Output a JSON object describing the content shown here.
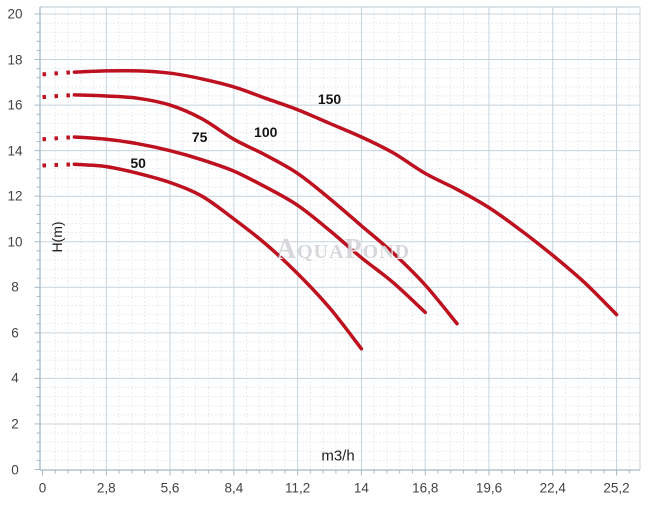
{
  "chart_data": {
    "type": "line",
    "title": "",
    "xlabel": "m3/h",
    "ylabel": "H(m)",
    "watermark": "AquaPond",
    "xlim": [
      0,
      25.2
    ],
    "ylim": [
      0,
      20
    ],
    "grid": {
      "major": true,
      "minor": true,
      "minor_step_x": 0.56,
      "minor_step_y": 0.4
    },
    "legend_position": "none",
    "x_ticks": [
      {
        "label": "0",
        "value": 0
      },
      {
        "label": "2,8",
        "value": 2.8
      },
      {
        "label": "5,6",
        "value": 5.6
      },
      {
        "label": "8,4",
        "value": 8.4
      },
      {
        "label": "11,2",
        "value": 11.2
      },
      {
        "label": "14",
        "value": 14
      },
      {
        "label": "16,8",
        "value": 16.8
      },
      {
        "label": "19,6",
        "value": 19.6
      },
      {
        "label": "22,4",
        "value": 22.4
      },
      {
        "label": "25,2",
        "value": 25.2
      }
    ],
    "y_ticks": [
      {
        "label": "0",
        "value": 0
      },
      {
        "label": "2",
        "value": 2
      },
      {
        "label": "4",
        "value": 4
      },
      {
        "label": "6",
        "value": 6
      },
      {
        "label": "8",
        "value": 8
      },
      {
        "label": "10",
        "value": 10
      },
      {
        "label": "12",
        "value": 12
      },
      {
        "label": "14",
        "value": 14
      },
      {
        "label": "16",
        "value": 16
      },
      {
        "label": "18",
        "value": 18
      },
      {
        "label": "20",
        "value": 20
      }
    ],
    "colors": {
      "curve": "#bd1120",
      "grid_major": "#c7d3db",
      "grid_minor": "#e0e8ed",
      "axis": "#a6bac8",
      "tick_text": "#434343",
      "curve_label_text": "#151515",
      "watermark": "#8a8a96"
    },
    "series": [
      {
        "name": "50",
        "dotted_until": 1.4,
        "label_anchor": [
          4.2,
          13.45
        ],
        "points": [
          [
            0,
            13.35
          ],
          [
            1.4,
            13.4
          ],
          [
            2.8,
            13.3
          ],
          [
            4.2,
            13.0
          ],
          [
            5.6,
            12.6
          ],
          [
            7,
            12.0
          ],
          [
            8.4,
            11.0
          ],
          [
            9.8,
            9.9
          ],
          [
            11.2,
            8.6
          ],
          [
            12.6,
            7.1
          ],
          [
            14,
            5.3
          ]
        ]
      },
      {
        "name": "75",
        "dotted_until": 1.4,
        "label_anchor": [
          6.9,
          14.6
        ],
        "points": [
          [
            0,
            14.5
          ],
          [
            1.4,
            14.6
          ],
          [
            2.8,
            14.5
          ],
          [
            4.2,
            14.3
          ],
          [
            5.6,
            14.0
          ],
          [
            7,
            13.6
          ],
          [
            8.4,
            13.1
          ],
          [
            9.8,
            12.4
          ],
          [
            11.2,
            11.6
          ],
          [
            12.6,
            10.5
          ],
          [
            14,
            9.3
          ],
          [
            15.4,
            8.2
          ],
          [
            16.8,
            6.9
          ]
        ]
      },
      {
        "name": "100",
        "dotted_until": 1.4,
        "label_anchor": [
          9.8,
          14.8
        ],
        "points": [
          [
            0,
            16.35
          ],
          [
            1.4,
            16.45
          ],
          [
            2.8,
            16.4
          ],
          [
            4.2,
            16.3
          ],
          [
            5.6,
            16.0
          ],
          [
            7,
            15.4
          ],
          [
            8.4,
            14.5
          ],
          [
            9.8,
            13.8
          ],
          [
            11.2,
            13.0
          ],
          [
            12.6,
            11.9
          ],
          [
            14,
            10.7
          ],
          [
            15.4,
            9.5
          ],
          [
            16.8,
            8.1
          ],
          [
            18.2,
            6.4
          ]
        ]
      },
      {
        "name": "150",
        "dotted_until": 1.4,
        "label_anchor": [
          12.6,
          16.25
        ],
        "points": [
          [
            0,
            17.35
          ],
          [
            1.4,
            17.45
          ],
          [
            2.8,
            17.5
          ],
          [
            4.2,
            17.5
          ],
          [
            5.6,
            17.4
          ],
          [
            7,
            17.15
          ],
          [
            8.4,
            16.8
          ],
          [
            9.8,
            16.3
          ],
          [
            11.2,
            15.8
          ],
          [
            12.6,
            15.2
          ],
          [
            14,
            14.6
          ],
          [
            15.4,
            13.9
          ],
          [
            16.8,
            13.0
          ],
          [
            18.2,
            12.3
          ],
          [
            19.6,
            11.5
          ],
          [
            21,
            10.5
          ],
          [
            22.4,
            9.4
          ],
          [
            23.8,
            8.2
          ],
          [
            25.2,
            6.8
          ]
        ]
      }
    ]
  }
}
